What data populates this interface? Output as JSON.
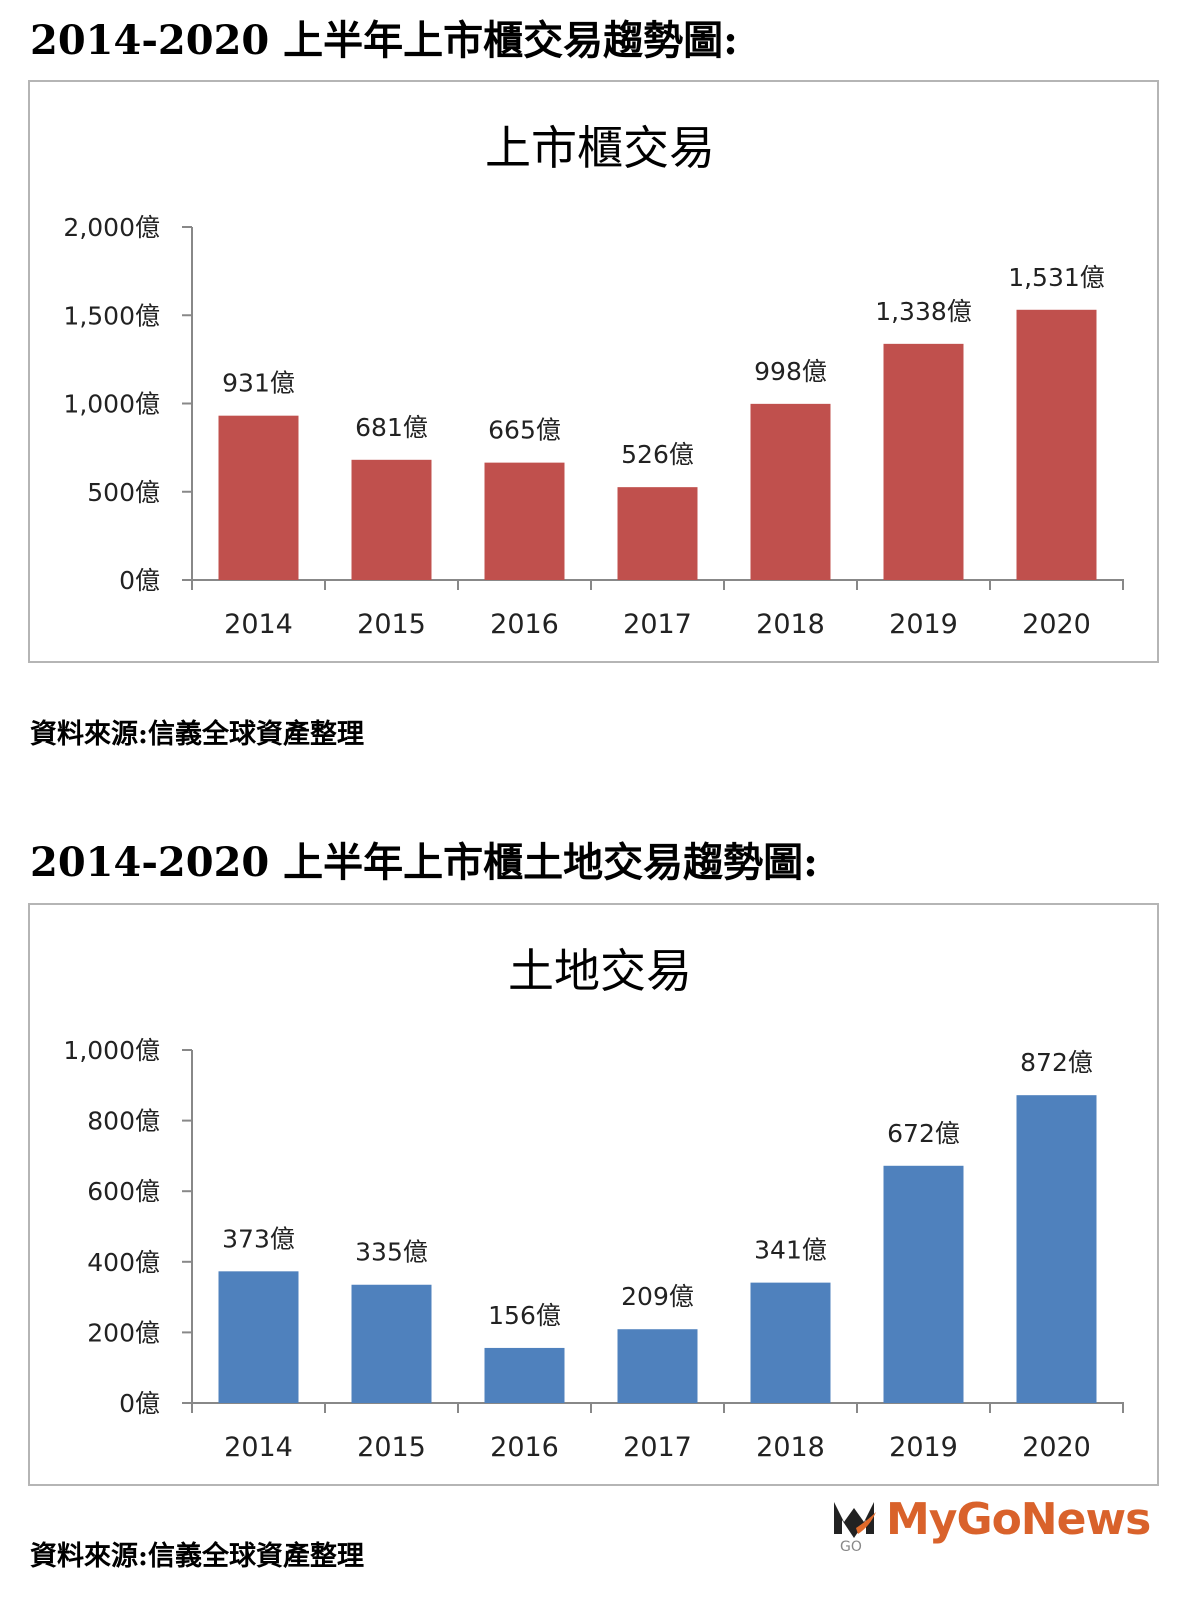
{
  "headings": [
    "2014-2020 上半年上市櫃交易趨勢圖:",
    "2014-2020 上半年上市櫃土地交易趨勢圖:"
  ],
  "sources": [
    "資料來源:信義全球資產整理",
    "資料來源:信義全球資產整理"
  ],
  "logo": {
    "text": "MyGoNews",
    "mark_text": "GO"
  },
  "chart_data": [
    {
      "type": "bar",
      "title": "上市櫃交易",
      "categories": [
        "2014",
        "2015",
        "2016",
        "2017",
        "2018",
        "2019",
        "2020"
      ],
      "values": [
        931,
        681,
        665,
        526,
        998,
        1338,
        1531
      ],
      "data_labels": [
        "931億",
        "681億",
        "665億",
        "526億",
        "998億",
        "1,338億",
        "1,531億"
      ],
      "ylim": [
        0,
        2000
      ],
      "yticks": [
        0,
        500,
        1000,
        1500,
        2000
      ],
      "ytick_labels": [
        "0億",
        "500億",
        "1,000億",
        "1,500億",
        "2,000億"
      ],
      "color": "#c0504d",
      "grid": false,
      "xlabel": "",
      "ylabel": ""
    },
    {
      "type": "bar",
      "title": "土地交易",
      "categories": [
        "2014",
        "2015",
        "2016",
        "2017",
        "2018",
        "2019",
        "2020"
      ],
      "values": [
        373,
        335,
        156,
        209,
        341,
        672,
        872
      ],
      "data_labels": [
        "373億",
        "335億",
        "156億",
        "209億",
        "341億",
        "672億",
        "872億"
      ],
      "ylim": [
        0,
        1000
      ],
      "yticks": [
        0,
        200,
        400,
        600,
        800,
        1000
      ],
      "ytick_labels": [
        "0億",
        "200億",
        "400億",
        "600億",
        "800億",
        "1,000億"
      ],
      "color": "#4f81bd",
      "grid": false,
      "xlabel": "",
      "ylabel": ""
    }
  ]
}
